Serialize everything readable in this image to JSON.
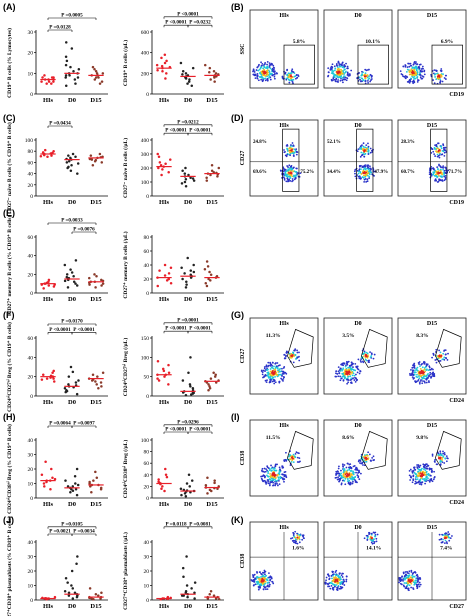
{
  "panels": {
    "A": "(A)",
    "B": "(B)",
    "C": "(C)",
    "D": "(D)",
    "E": "(E)",
    "F": "(F)",
    "G": "(G)",
    "H": "(H)",
    "I": "(I)",
    "J": "(J)",
    "K": "(K)"
  },
  "colors": {
    "HIs": "#e8202a",
    "D0": "#222222",
    "D15": "#8a3a2a",
    "flow_low": "#2a32c8",
    "flow_mid": "#1ec8d8",
    "flow_high": "#f0c020",
    "flow_peak": "#e02020"
  },
  "chart_data": [
    {
      "type": "scatter",
      "id": "A1",
      "categories": [
        "HIs",
        "D0",
        "D15"
      ],
      "ylabel": "CD19⁺ B cells (% Lymocytes)",
      "ylim": [
        0,
        30
      ],
      "yticks": [
        "0",
        "10",
        "20",
        "30"
      ],
      "medians": [
        7,
        10,
        9
      ],
      "series": [
        {
          "values": [
            [
              5,
              6,
              7,
              7,
              8,
              8,
              9,
              6,
              5,
              7,
              8,
              6
            ],
            [
              4,
              5,
              7,
              8,
              9,
              10,
              11,
              12,
              14,
              16,
              18,
              22,
              25,
              9,
              8,
              10,
              13
            ],
            [
              5,
              6,
              7,
              8,
              9,
              10,
              11,
              12,
              13,
              9,
              8,
              10
            ]
          ]
        }
      ],
      "annotations": [
        {
          "from": 0,
          "to": 2,
          "level": 0.9,
          "text": "P =0.0005"
        },
        {
          "from": 0,
          "to": 1,
          "level": 0.7,
          "text": "P =0.0128"
        }
      ]
    },
    {
      "type": "scatter",
      "id": "A2",
      "categories": [
        "HIs",
        "D0",
        "D15"
      ],
      "ylabel": "CD19⁺ B cells (/μL)",
      "ylim": [
        0,
        600
      ],
      "yticks": [
        "0",
        "200",
        "400",
        "600"
      ],
      "medians": [
        250,
        170,
        180
      ],
      "series": [
        {
          "values": [
            [
              150,
              200,
              230,
              250,
              260,
              280,
              300,
              320,
              350,
              380,
              220,
              270
            ],
            [
              80,
              100,
              120,
              140,
              160,
              170,
              180,
              200,
              220,
              250,
              300,
              150,
              190
            ],
            [
              120,
              140,
              160,
              170,
              180,
              190,
              200,
              220,
              250,
              280,
              170,
              210
            ]
          ]
        }
      ],
      "annotations": [
        {
          "from": 0,
          "to": 2,
          "level": 0.92,
          "text": "P <0.0001"
        },
        {
          "from": 0,
          "to": 1,
          "level": 0.78,
          "text": "P <0.0001"
        },
        {
          "from": 1,
          "to": 2,
          "level": 0.78,
          "text": "P =0.0232"
        }
      ]
    },
    {
      "type": "scatter",
      "id": "C1",
      "categories": [
        "HIs",
        "D0",
        "D15"
      ],
      "ylabel": "CD27⁻ naïve B cells (% CD19⁺ B cells)",
      "ylim": [
        0,
        100
      ],
      "yticks": [
        "0",
        "20",
        "40",
        "60",
        "80",
        "100"
      ],
      "medians": [
        75,
        65,
        68
      ],
      "series": [
        {
          "values": [
            [
              70,
              72,
              74,
              75,
              76,
              78,
              80,
              82,
              73,
              77,
              71
            ],
            [
              40,
              45,
              50,
              55,
              60,
              62,
              65,
              68,
              70,
              72,
              75,
              58,
              52,
              66
            ],
            [
              55,
              60,
              62,
              65,
              68,
              70,
              72,
              75,
              66,
              64,
              69
            ]
          ]
        }
      ],
      "annotations": [
        {
          "from": 0,
          "to": 1,
          "level": 0.9,
          "text": "P =0.0434"
        }
      ]
    },
    {
      "type": "scatter",
      "id": "C2",
      "categories": [
        "HIs",
        "D0",
        "D15"
      ],
      "ylabel": "CD27⁻ naïve B cells (/μL)",
      "ylim": [
        0,
        400
      ],
      "yticks": [
        "0",
        "100",
        "200",
        "300",
        "400"
      ],
      "medians": [
        210,
        140,
        160
      ],
      "series": [
        {
          "values": [
            [
              150,
              170,
              190,
              200,
              210,
              220,
              240,
              260,
              280,
              300,
              230
            ],
            [
              70,
              90,
              110,
              120,
              130,
              140,
              150,
              160,
              180,
              200,
              100,
              125
            ],
            [
              110,
              130,
              140,
              150,
              160,
              170,
              180,
              200,
              220,
              155,
              165
            ]
          ]
        }
      ],
      "annotations": [
        {
          "from": 0,
          "to": 2,
          "level": 0.92,
          "text": "P =0.0212"
        },
        {
          "from": 0,
          "to": 1,
          "level": 0.78,
          "text": "P <0.0001"
        },
        {
          "from": 1,
          "to": 2,
          "level": 0.78,
          "text": "P <0.0001"
        }
      ]
    },
    {
      "type": "scatter",
      "id": "E1",
      "categories": [
        "HIs",
        "D0",
        "D15"
      ],
      "ylabel": "CD27⁺ memory B cells (% CD19⁺ B cells)",
      "ylim": [
        0,
        60
      ],
      "yticks": [
        "0",
        "20",
        "40",
        "60"
      ],
      "medians": [
        10,
        15,
        12
      ],
      "series": [
        {
          "values": [
            [
              5,
              7,
              8,
              9,
              10,
              11,
              12,
              14,
              9,
              10
            ],
            [
              6,
              8,
              10,
              12,
              14,
              15,
              16,
              18,
              20,
              22,
              25,
              30,
              35,
              13,
              17
            ],
            [
              6,
              8,
              10,
              11,
              12,
              13,
              14,
              16,
              18,
              20,
              12,
              9
            ]
          ]
        }
      ],
      "annotations": [
        {
          "from": 0,
          "to": 2,
          "level": 0.9,
          "text": "P =0.0033"
        },
        {
          "from": 1,
          "to": 2,
          "level": 0.75,
          "text": "P =0.0076"
        }
      ]
    },
    {
      "type": "scatter",
      "id": "E2",
      "categories": [
        "HIs",
        "D0",
        "D15"
      ],
      "ylabel": "CD27⁺ memory B cells (/μL)",
      "ylim": [
        0,
        80
      ],
      "yticks": [
        "0",
        "20",
        "40",
        "60",
        "80"
      ],
      "medians": [
        22,
        24,
        22
      ],
      "series": [
        {
          "values": [
            [
              10,
              14,
              18,
              20,
              22,
              25,
              28,
              32,
              36,
              40,
              20
            ],
            [
              8,
              12,
              16,
              20,
              24,
              28,
              32,
              36,
              40,
              50,
              22,
              26,
              30
            ],
            [
              10,
              14,
              18,
              22,
              26,
              30,
              34,
              38,
              45,
              20,
              24
            ]
          ]
        }
      ],
      "annotations": []
    },
    {
      "type": "scatter",
      "id": "F1",
      "categories": [
        "HIs",
        "D0",
        "D15"
      ],
      "ylabel": "CD24ʰⁱCD27ʰⁱ Breg (% CD19⁺ B cells)",
      "ylim": [
        0,
        60
      ],
      "yticks": [
        "0",
        "20",
        "40",
        "60"
      ],
      "medians": [
        20,
        10,
        18
      ],
      "series": [
        {
          "values": [
            [
              15,
              17,
              18,
              19,
              20,
              21,
              22,
              24,
              26,
              20,
              18
            ],
            [
              2,
              4,
              6,
              8,
              10,
              12,
              14,
              16,
              20,
              25,
              30,
              9,
              11,
              5
            ],
            [
              8,
              10,
              12,
              14,
              16,
              18,
              20,
              22,
              24,
              17,
              15
            ]
          ]
        }
      ],
      "annotations": [
        {
          "from": 0,
          "to": 2,
          "level": 0.9,
          "text": "P =0.0170"
        },
        {
          "from": 0,
          "to": 1,
          "level": 0.76,
          "text": "P <0.0001"
        },
        {
          "from": 1,
          "to": 2,
          "level": 0.76,
          "text": "P <0.0001"
        }
      ]
    },
    {
      "type": "scatter",
      "id": "F2",
      "categories": [
        "HIs",
        "D0",
        "D15"
      ],
      "ylabel": "CD24ʰⁱCD27ʰⁱ Breg (/μL)",
      "ylim": [
        0,
        150
      ],
      "yticks": [
        "0",
        "50",
        "100",
        "150"
      ],
      "medians": [
        55,
        12,
        38
      ],
      "series": [
        {
          "values": [
            [
              30,
              40,
              45,
              50,
              55,
              60,
              65,
              70,
              80,
              90,
              55
            ],
            [
              2,
              4,
              6,
              8,
              10,
              12,
              15,
              20,
              25,
              30,
              40,
              60,
              100,
              9
            ],
            [
              15,
              20,
              25,
              30,
              35,
              38,
              40,
              45,
              50,
              55,
              60,
              35
            ]
          ]
        }
      ],
      "annotations": [
        {
          "from": 0,
          "to": 2,
          "level": 0.92,
          "text": "P =0.0001"
        },
        {
          "from": 0,
          "to": 1,
          "level": 0.78,
          "text": "P <0.0001"
        },
        {
          "from": 1,
          "to": 2,
          "level": 0.78,
          "text": "P <0.0001"
        }
      ]
    },
    {
      "type": "scatter",
      "id": "H1",
      "categories": [
        "HIs",
        "D0",
        "D15"
      ],
      "ylabel": "CD24ʰⁱCD38ʰⁱ Breg (% CD19⁺ B cells)",
      "ylim": [
        0,
        40
      ],
      "yticks": [
        "0",
        "10",
        "20",
        "30",
        "40"
      ],
      "medians": [
        12,
        7,
        9
      ],
      "series": [
        {
          "values": [
            [
              6,
              8,
              10,
              11,
              12,
              13,
              14,
              16,
              20,
              25,
              12
            ],
            [
              2,
              4,
              5,
              6,
              7,
              8,
              9,
              10,
              12,
              15,
              20,
              6,
              8
            ],
            [
              4,
              6,
              7,
              8,
              9,
              10,
              11,
              12,
              14,
              18,
              9
            ]
          ]
        }
      ],
      "annotations": [
        {
          "from": 0,
          "to": 1,
          "level": 0.9,
          "text": "P =0.0064"
        },
        {
          "from": 1,
          "to": 2,
          "level": 0.9,
          "text": "P =0.0097"
        }
      ]
    },
    {
      "type": "scatter",
      "id": "H2",
      "categories": [
        "HIs",
        "D0",
        "D15"
      ],
      "ylabel": "CD24ʰⁱCD38ʰⁱ Breg (/μL)",
      "ylim": [
        0,
        100
      ],
      "yticks": [
        "0",
        "20",
        "40",
        "60",
        "80",
        "100"
      ],
      "medians": [
        25,
        12,
        18
      ],
      "series": [
        {
          "values": [
            [
              12,
              16,
              20,
              24,
              26,
              28,
              32,
              36,
              40,
              50,
              25
            ],
            [
              3,
              5,
              8,
              10,
              12,
              14,
              16,
              20,
              25,
              30,
              40,
              11,
              13
            ],
            [
              8,
              12,
              14,
              16,
              18,
              20,
              22,
              26,
              30,
              35,
              17
            ]
          ]
        }
      ],
      "annotations": [
        {
          "from": 0,
          "to": 2,
          "level": 0.92,
          "text": "P =0.0296"
        },
        {
          "from": 0,
          "to": 1,
          "level": 0.8,
          "text": "P <0.0001"
        },
        {
          "from": 1,
          "to": 2,
          "level": 0.8,
          "text": "P <0.0001"
        }
      ]
    },
    {
      "type": "scatter",
      "id": "J1",
      "categories": [
        "HIs",
        "D0",
        "D15"
      ],
      "ylabel": "CD27⁺CD38⁺ plasmablasts (% CD19⁺ B cells)",
      "ylim": [
        0,
        40
      ],
      "yticks": [
        "0",
        "10",
        "20",
        "30",
        "40"
      ],
      "medians": [
        1,
        4,
        2
      ],
      "series": [
        {
          "values": [
            [
              0.5,
              1,
              1,
              1.5,
              2,
              1,
              0.8,
              1.2
            ],
            [
              1,
              2,
              3,
              4,
              5,
              6,
              8,
              10,
              12,
              15,
              20,
              25,
              30,
              3,
              5
            ],
            [
              0.5,
              1,
              1.5,
              2,
              3,
              4,
              5,
              8,
              2,
              1
            ]
          ]
        }
      ],
      "annotations": [
        {
          "from": 0,
          "to": 2,
          "level": 0.92,
          "text": "P =0.0105"
        },
        {
          "from": 0,
          "to": 1,
          "level": 0.8,
          "text": "P =0.0021"
        },
        {
          "from": 1,
          "to": 2,
          "level": 0.8,
          "text": "P =0.0034"
        }
      ]
    },
    {
      "type": "scatter",
      "id": "J2",
      "categories": [
        "HIs",
        "D0",
        "D15"
      ],
      "ylabel": "CD27⁺CD38⁺ plasmablasts (/μL)",
      "ylim": [
        0,
        40
      ],
      "yticks": [
        "0",
        "10",
        "20",
        "30",
        "40"
      ],
      "medians": [
        1,
        4,
        2
      ],
      "series": [
        {
          "values": [
            [
              0.5,
              1,
              1,
              1.5,
              2,
              1,
              0.8
            ],
            [
              1,
              2,
              3,
              4,
              5,
              6,
              8,
              10,
              12,
              16,
              22,
              30,
              3,
              5
            ],
            [
              0.5,
              1,
              1.5,
              2,
              3,
              4,
              6,
              2,
              1
            ]
          ]
        }
      ],
      "annotations": [
        {
          "from": 0,
          "to": 1,
          "level": 0.92,
          "text": "P =0.0118"
        },
        {
          "from": 1,
          "to": 2,
          "level": 0.92,
          "text": "P =0.0081"
        }
      ]
    }
  ],
  "flow_panels": {
    "B": {
      "xaxis": "CD19",
      "yaxis": "SSC",
      "plots": [
        {
          "label": "HIs",
          "pct": "5.8%"
        },
        {
          "label": "D0",
          "pct": "10.1%"
        },
        {
          "label": "D15",
          "pct": "6.9%"
        }
      ]
    },
    "D": {
      "xaxis": "CD19",
      "yaxis": "CD27",
      "plots": [
        {
          "label": "HIs",
          "pct_top": "24.8%",
          "pct_bot": "69.6%",
          "pct_bot2": "75.2%"
        },
        {
          "label": "D0",
          "pct_top": "52.1%",
          "pct_bot": "34.4%",
          "pct_bot2": "47.9%"
        },
        {
          "label": "D15",
          "pct_top": "28.3%",
          "pct_bot": "60.7%",
          "pct_bot2": "71.7%"
        }
      ]
    },
    "G": {
      "xaxis": "CD24",
      "yaxis": "CD27",
      "plots": [
        {
          "label": "HIs",
          "pct": "11.3%"
        },
        {
          "label": "D0",
          "pct": "3.5%"
        },
        {
          "label": "D15",
          "pct": "8.3%"
        }
      ]
    },
    "I": {
      "xaxis": "CD24",
      "yaxis": "CD38",
      "plots": [
        {
          "label": "HIs",
          "pct": "11.5%"
        },
        {
          "label": "D0",
          "pct": "8.6%"
        },
        {
          "label": "D15",
          "pct": "9.8%"
        }
      ]
    },
    "K": {
      "xaxis": "CD27",
      "yaxis": "CD38",
      "plots": [
        {
          "label": "HIs",
          "pct": "1.6%"
        },
        {
          "label": "D0",
          "pct": "14.1%"
        },
        {
          "label": "D15",
          "pct": "7.4%"
        }
      ]
    }
  }
}
